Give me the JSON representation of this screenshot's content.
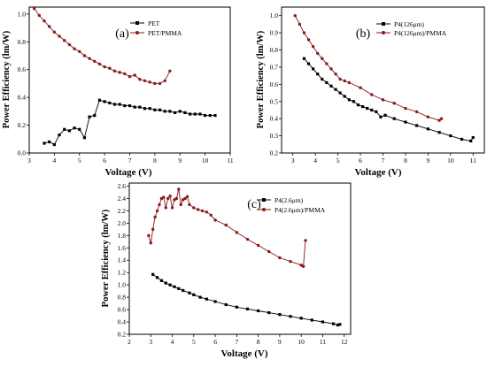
{
  "chart_data": [
    {
      "type": "line",
      "panel_label": "(a)",
      "xlabel": "Voltage (V)",
      "ylabel": "Power Efficiency (lm/W)",
      "xlim": [
        3,
        11
      ],
      "ylim": [
        0.0,
        1.05
      ],
      "xticks": [
        "3",
        "4",
        "5",
        "6",
        "7",
        "8",
        "9",
        "10",
        "11"
      ],
      "yticks": [
        "0.0",
        "0.2",
        "0.4",
        "0.6",
        "0.8",
        "1.0"
      ],
      "xtick_values": [
        3,
        4,
        5,
        6,
        7,
        8,
        9,
        10,
        11
      ],
      "ytick_values": [
        0.0,
        0.2,
        0.4,
        0.6,
        0.8,
        1.0
      ],
      "legend_position": "top-right",
      "series": [
        {
          "name": "PET",
          "marker": "square",
          "color": "#000000",
          "x": [
            3.6,
            3.8,
            4.0,
            4.2,
            4.4,
            4.6,
            4.8,
            5.0,
            5.2,
            5.4,
            5.6,
            5.8,
            6.0,
            6.2,
            6.4,
            6.6,
            6.8,
            7.0,
            7.2,
            7.4,
            7.6,
            7.8,
            8.0,
            8.2,
            8.4,
            8.6,
            8.8,
            9.0,
            9.2,
            9.4,
            9.6,
            9.8,
            10.0,
            10.2,
            10.4
          ],
          "y": [
            0.07,
            0.08,
            0.06,
            0.13,
            0.17,
            0.16,
            0.18,
            0.17,
            0.11,
            0.26,
            0.27,
            0.38,
            0.37,
            0.36,
            0.35,
            0.35,
            0.34,
            0.34,
            0.33,
            0.33,
            0.32,
            0.32,
            0.31,
            0.31,
            0.3,
            0.3,
            0.29,
            0.3,
            0.29,
            0.28,
            0.28,
            0.28,
            0.27,
            0.27,
            0.27
          ]
        },
        {
          "name": "PET/PMMA",
          "marker": "circle",
          "color": "#8B1A1A",
          "x": [
            3.2,
            3.4,
            3.6,
            3.8,
            4.0,
            4.2,
            4.4,
            4.6,
            4.8,
            5.0,
            5.2,
            5.4,
            5.6,
            5.8,
            6.0,
            6.2,
            6.4,
            6.6,
            6.8,
            7.0,
            7.2,
            7.4,
            7.6,
            7.8,
            8.0,
            8.2,
            8.4,
            8.6
          ],
          "y": [
            1.04,
            0.99,
            0.95,
            0.91,
            0.87,
            0.84,
            0.81,
            0.78,
            0.75,
            0.73,
            0.7,
            0.68,
            0.66,
            0.64,
            0.62,
            0.61,
            0.59,
            0.58,
            0.57,
            0.55,
            0.56,
            0.53,
            0.52,
            0.51,
            0.5,
            0.5,
            0.52,
            0.59
          ]
        }
      ]
    },
    {
      "type": "line",
      "panel_label": "(b)",
      "xlabel": "Voltage (V)",
      "ylabel": "Power Efficiency (lm/W)",
      "xlim": [
        2.5,
        11.5
      ],
      "ylim": [
        0.2,
        1.05
      ],
      "xticks": [
        "3",
        "4",
        "5",
        "6",
        "7",
        "8",
        "9",
        "10",
        "11"
      ],
      "yticks": [
        "0.2",
        "0.3",
        "0.4",
        "0.5",
        "0.6",
        "0.7",
        "0.8",
        "0.9",
        "1.0"
      ],
      "xtick_values": [
        3,
        4,
        5,
        6,
        7,
        8,
        9,
        10,
        11
      ],
      "ytick_values": [
        0.2,
        0.3,
        0.4,
        0.5,
        0.6,
        0.7,
        0.8,
        0.9,
        1.0
      ],
      "legend_position": "top-right",
      "series": [
        {
          "name": "P4(126μm)",
          "marker": "square",
          "color": "#000000",
          "x": [
            3.5,
            3.7,
            3.9,
            4.1,
            4.3,
            4.5,
            4.7,
            4.9,
            5.1,
            5.3,
            5.5,
            5.7,
            5.9,
            6.1,
            6.3,
            6.5,
            6.7,
            6.9,
            7.1,
            7.5,
            8.0,
            8.5,
            9.0,
            9.5,
            10.0,
            10.5,
            10.9,
            11.0
          ],
          "y": [
            0.75,
            0.72,
            0.69,
            0.66,
            0.63,
            0.61,
            0.59,
            0.57,
            0.55,
            0.53,
            0.51,
            0.5,
            0.48,
            0.47,
            0.46,
            0.45,
            0.44,
            0.41,
            0.42,
            0.4,
            0.38,
            0.36,
            0.34,
            0.32,
            0.3,
            0.28,
            0.27,
            0.29
          ]
        },
        {
          "name": "P4(126μm)/PMMA",
          "marker": "circle",
          "color": "#8B1A1A",
          "x": [
            3.1,
            3.3,
            3.5,
            3.7,
            3.9,
            4.1,
            4.3,
            4.5,
            4.7,
            4.9,
            5.1,
            5.3,
            5.5,
            6.0,
            6.5,
            7.0,
            7.5,
            8.0,
            8.5,
            9.0,
            9.5,
            9.6
          ],
          "y": [
            1.0,
            0.95,
            0.9,
            0.86,
            0.82,
            0.78,
            0.75,
            0.72,
            0.69,
            0.66,
            0.63,
            0.62,
            0.61,
            0.58,
            0.54,
            0.51,
            0.49,
            0.46,
            0.44,
            0.41,
            0.39,
            0.4
          ]
        }
      ]
    },
    {
      "type": "line",
      "panel_label": "(c)",
      "xlabel": "Voltage (V)",
      "ylabel": "Power Efficiency (lm/W)",
      "xlim": [
        2,
        12.3
      ],
      "ylim": [
        0.2,
        2.65
      ],
      "xticks": [
        "2",
        "3",
        "4",
        "5",
        "6",
        "7",
        "8",
        "9",
        "10",
        "11",
        "12"
      ],
      "yticks": [
        "0.2",
        "0.4",
        "0.6",
        "0.8",
        "1.0",
        "1.2",
        "1.4",
        "1.6",
        "1.8",
        "2.0",
        "2.2",
        "2.4",
        "2.6"
      ],
      "xtick_values": [
        2,
        3,
        4,
        5,
        6,
        7,
        8,
        9,
        10,
        11,
        12
      ],
      "ytick_values": [
        0.2,
        0.4,
        0.6,
        0.8,
        1.0,
        1.2,
        1.4,
        1.6,
        1.8,
        2.0,
        2.2,
        2.4,
        2.6
      ],
      "legend_position": "top-right",
      "series": [
        {
          "name": "P4(2.6μm)",
          "marker": "square",
          "color": "#000000",
          "x": [
            3.1,
            3.3,
            3.5,
            3.7,
            3.9,
            4.1,
            4.3,
            4.5,
            4.8,
            5.0,
            5.3,
            5.6,
            6.0,
            6.5,
            7.0,
            7.5,
            8.0,
            8.5,
            9.0,
            9.5,
            10.0,
            10.5,
            11.0,
            11.5,
            11.7,
            11.8
          ],
          "y": [
            1.17,
            1.12,
            1.07,
            1.03,
            1.0,
            0.97,
            0.94,
            0.91,
            0.87,
            0.84,
            0.8,
            0.77,
            0.73,
            0.68,
            0.64,
            0.61,
            0.58,
            0.55,
            0.52,
            0.49,
            0.46,
            0.43,
            0.4,
            0.37,
            0.35,
            0.36
          ]
        },
        {
          "name": "P4(2.6μm)/PMMA",
          "marker": "circle",
          "color": "#8B1A1A",
          "x": [
            2.9,
            3.0,
            3.1,
            3.2,
            3.3,
            3.4,
            3.5,
            3.6,
            3.7,
            3.8,
            3.9,
            4.0,
            4.1,
            4.2,
            4.3,
            4.4,
            4.5,
            4.6,
            4.7,
            4.8,
            5.0,
            5.2,
            5.4,
            5.6,
            5.8,
            6.0,
            6.5,
            7.0,
            7.5,
            8.0,
            8.5,
            9.0,
            9.5,
            10.0,
            10.1,
            10.2
          ],
          "y": [
            1.8,
            1.68,
            1.9,
            2.1,
            2.2,
            2.3,
            2.4,
            2.42,
            2.25,
            2.4,
            2.44,
            2.25,
            2.38,
            2.4,
            2.55,
            2.3,
            2.38,
            2.4,
            2.43,
            2.3,
            2.25,
            2.22,
            2.2,
            2.18,
            2.13,
            2.05,
            1.97,
            1.85,
            1.74,
            1.64,
            1.54,
            1.44,
            1.38,
            1.32,
            1.3,
            1.72
          ]
        }
      ]
    }
  ]
}
